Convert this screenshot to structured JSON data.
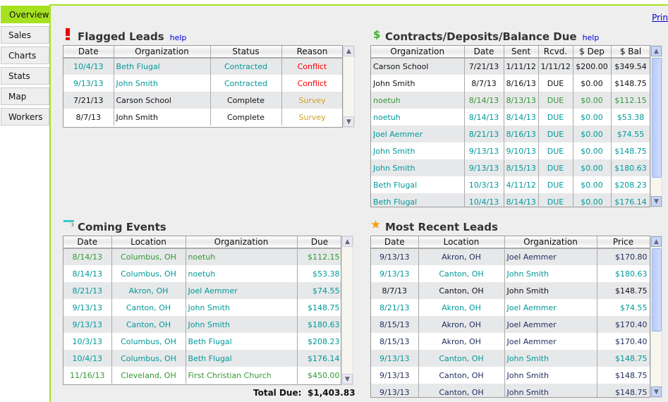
{
  "sidebar": {
    "tabs": [
      {
        "label": "Overview",
        "active": true
      },
      {
        "label": "Sales"
      },
      {
        "label": "Charts"
      },
      {
        "label": "Stats"
      },
      {
        "label": "Map"
      },
      {
        "label": "Workers"
      }
    ]
  },
  "header": {
    "print_label": "Prin"
  },
  "colors": {
    "teal": "#009999",
    "green": "#339933",
    "black": "#111111",
    "red": "#ff0000",
    "gold": "#d4a020",
    "navy": "#1f2d5c",
    "accent": "#a6e21f"
  },
  "flagged": {
    "title": "Flagged Leads",
    "help": "help",
    "icon": "exclamation-icon",
    "columns": [
      "Date",
      "Organization",
      "Status",
      "Reason"
    ],
    "rows": [
      {
        "color": "teal",
        "cells": [
          "10/4/13",
          "Beth Flugal",
          "Contracted",
          "Conflict"
        ],
        "reason_color": "red"
      },
      {
        "color": "teal",
        "cells": [
          "9/13/13",
          "John Smith",
          "Contracted",
          "Conflict"
        ],
        "reason_color": "red"
      },
      {
        "color": "black",
        "cells": [
          "7/21/13",
          "Carson School",
          "Complete",
          "Survey"
        ],
        "reason_color": "gold"
      },
      {
        "color": "black",
        "cells": [
          "8/7/13",
          "John Smith",
          "Complete",
          "Survey"
        ],
        "reason_color": "gold"
      }
    ]
  },
  "contracts": {
    "title": "Contracts/Deposits/Balance Due",
    "help": "help",
    "icon": "dollar-icon",
    "columns": [
      "Organization",
      "Date",
      "Sent",
      "Rcvd.",
      "$ Dep",
      "$ Bal"
    ],
    "rows": [
      {
        "color": "black",
        "cells": [
          "Carson School",
          "7/21/13",
          "1/11/12",
          "1/11/12",
          "$200.00",
          "$349.54"
        ]
      },
      {
        "color": "black",
        "cells": [
          "John Smith",
          "8/7/13",
          "8/16/13",
          "DUE",
          "$0.00",
          "$148.75"
        ]
      },
      {
        "color": "green",
        "cells": [
          "noetuh",
          "8/14/13",
          "8/13/13",
          "DUE",
          "$0.00",
          "$112.15"
        ]
      },
      {
        "color": "teal",
        "cells": [
          "noetuh",
          "8/14/13",
          "8/14/13",
          "DUE",
          "$0.00",
          "$53.38"
        ]
      },
      {
        "color": "teal",
        "cells": [
          "Joel Aemmer",
          "8/21/13",
          "8/16/13",
          "DUE",
          "$0.00",
          "$74.55"
        ]
      },
      {
        "color": "teal",
        "cells": [
          "John Smith",
          "9/13/13",
          "9/10/13",
          "DUE",
          "$0.00",
          "$148.75"
        ]
      },
      {
        "color": "teal",
        "cells": [
          "John Smith",
          "9/13/13",
          "8/15/13",
          "DUE",
          "$0.00",
          "$180.63"
        ]
      },
      {
        "color": "teal",
        "cells": [
          "Beth Flugal",
          "10/3/13",
          "4/11/12",
          "DUE",
          "$0.00",
          "$208.23"
        ]
      },
      {
        "color": "teal",
        "cells": [
          "Beth Flugal",
          "10/4/13",
          "8/14/13",
          "DUE",
          "$0.00",
          "$176.14"
        ]
      }
    ]
  },
  "events": {
    "title": "Coming Events",
    "icon": "calendar-icon",
    "icon_text": "3",
    "columns": [
      "Date",
      "Location",
      "Organization",
      "Due"
    ],
    "rows": [
      {
        "color": "green",
        "cells": [
          "8/14/13",
          "Columbus, OH",
          "noetuh",
          "$112.15"
        ]
      },
      {
        "color": "teal",
        "cells": [
          "8/14/13",
          "Columbus, OH",
          "noetuh",
          "$53.38"
        ]
      },
      {
        "color": "teal",
        "cells": [
          "8/21/13",
          "Akron, OH",
          "Joel Aemmer",
          "$74.55"
        ]
      },
      {
        "color": "teal",
        "cells": [
          "9/13/13",
          "Canton, OH",
          "John Smith",
          "$148.75"
        ]
      },
      {
        "color": "teal",
        "cells": [
          "9/13/13",
          "Canton, OH",
          "John Smith",
          "$180.63"
        ]
      },
      {
        "color": "teal",
        "cells": [
          "10/3/13",
          "Columbus, OH",
          "Beth Flugal",
          "$208.23"
        ]
      },
      {
        "color": "teal",
        "cells": [
          "10/4/13",
          "Columbus, OH",
          "Beth Flugal",
          "$176.14"
        ]
      },
      {
        "color": "green",
        "cells": [
          "11/16/13",
          "Cleveland, OH",
          "First Christian Church",
          "$450.00"
        ]
      }
    ],
    "total_label": "Total Due:",
    "total_value": "$1,403.83"
  },
  "recent": {
    "title": "Most Recent Leads",
    "icon": "star-icon",
    "columns": [
      "Date",
      "Location",
      "Organization",
      "Price"
    ],
    "rows": [
      {
        "color": "navy",
        "cells": [
          "9/13/13",
          "Akron, OH",
          "Joel Aemmer",
          "$170.80"
        ]
      },
      {
        "color": "teal",
        "cells": [
          "9/13/13",
          "Canton, OH",
          "John Smith",
          "$180.63"
        ]
      },
      {
        "color": "black",
        "cells": [
          "8/7/13",
          "Canton, OH",
          "John Smith",
          "$148.75"
        ]
      },
      {
        "color": "teal",
        "cells": [
          "8/21/13",
          "Akron, OH",
          "Joel Aemmer",
          "$74.55"
        ]
      },
      {
        "color": "navy",
        "cells": [
          "8/15/13",
          "Akron, OH",
          "Joel Aemmer",
          "$170.40"
        ]
      },
      {
        "color": "navy",
        "cells": [
          "8/15/13",
          "Akron, OH",
          "Joel Aemmer",
          "$170.40"
        ]
      },
      {
        "color": "teal",
        "cells": [
          "9/13/13",
          "Canton, OH",
          "John Smith",
          "$148.75"
        ]
      },
      {
        "color": "navy",
        "cells": [
          "9/13/13",
          "Canton, OH",
          "John Smith",
          "$148.75"
        ]
      },
      {
        "color": "navy",
        "cells": [
          "9/13/13",
          "Canton, OH",
          "John Smith",
          "$148.75"
        ]
      }
    ]
  }
}
